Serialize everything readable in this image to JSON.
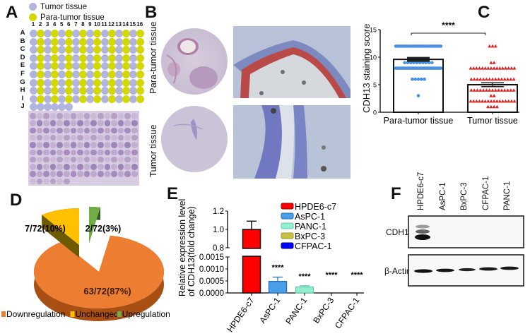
{
  "panels": {
    "A": {
      "letter": "A",
      "legend": [
        {
          "label": "Tumor tissue",
          "color": "#B1B5DD"
        },
        {
          "label": "Para-tumor tissue",
          "color": "#D3D800"
        }
      ],
      "columns": [
        "1",
        "2",
        "3",
        "4",
        "5",
        "6",
        "7",
        "8",
        "9",
        "10",
        "11",
        "12",
        "13",
        "14",
        "15",
        "16"
      ],
      "rows": [
        "A",
        "B",
        "C",
        "D",
        "E",
        "F",
        "G",
        "H",
        "I",
        "J"
      ],
      "layout_note": "Rows A–I: odd columns tumor (blue), even columns para-tumor (yellow); Row J: columns 1–6 tumor",
      "row_J_count": 6
    },
    "B": {
      "letter": "B",
      "row_labels": [
        "Para-tumor tissue",
        "Tumor tissue"
      ]
    },
    "C": {
      "letter": "C",
      "significance": "****"
    },
    "D": {
      "letter": "D"
    },
    "E": {
      "letter": "E"
    },
    "F": {
      "letter": "F",
      "lanes": [
        "HPDE6-c7",
        "AsPC-1",
        "BxPC-3",
        "CFPAC-1",
        "PANC-1"
      ],
      "bands": [
        "CDH13",
        "β-Actin"
      ]
    }
  },
  "chart_data": [
    {
      "panel": "C",
      "type": "bar",
      "title": "",
      "ylabel": "CDH13 staining score",
      "xlabel": "",
      "categories": [
        "Para-tumor tissue",
        "Tumor tissue"
      ],
      "values": [
        9.6,
        5.0
      ],
      "sem": [
        0.25,
        0.35
      ],
      "ylim": [
        0,
        15
      ],
      "yticks": [
        0,
        5,
        10,
        15
      ],
      "significance": "****",
      "scatter": {
        "Para-tumor tissue": {
          "marker": "circle",
          "color": "#4A90E2",
          "points": {
            "12": 30,
            "9": 10,
            "8": 30,
            "6": 5,
            "3": 1
          }
        },
        "Tumor tissue": {
          "marker": "triangle",
          "color": "#E0201E",
          "points": {
            "12": 3,
            "9": 2,
            "8": 16,
            "6": 15,
            "4": 15,
            "3": 2,
            "2": 16,
            "1": 4
          }
        }
      },
      "grid": false
    },
    {
      "panel": "D",
      "type": "pie",
      "title": "",
      "slices": [
        {
          "label": "Downregulation",
          "value": 63,
          "annotation": "63/72(87%)",
          "color": "#ED7D31"
        },
        {
          "label": "Unchanged",
          "value": 7,
          "annotation": "7/72(10%)",
          "color": "#FFC000"
        },
        {
          "label": "Upregulation",
          "value": 2,
          "annotation": "2/72(3%)",
          "color": "#70AD47"
        }
      ],
      "legend_position": "bottom"
    },
    {
      "panel": "E",
      "type": "bar",
      "title": "",
      "ylabel": "Relative expression level of CDH13(fold change)",
      "categories": [
        "HPDE6-c7",
        "AsPC-1",
        "PANC-1",
        "BxPC-3",
        "CFPAC-1"
      ],
      "values": [
        1.0,
        0.00048,
        0.00025,
        0.0,
        0.0
      ],
      "error": [
        0.09,
        0.00018,
        5e-05,
        0.0,
        0.0
      ],
      "colors": [
        "#FF0000",
        "#4A9FE8",
        "#8FEFD0",
        "#C8C040",
        "#0000FF"
      ],
      "significance": [
        "",
        "****",
        "****",
        "****",
        "****"
      ],
      "axis_break": true,
      "yticks_upper": [
        "0.8",
        "1.0",
        "1.2"
      ],
      "yticks_lower": [
        "0.0000",
        "0.0005",
        "0.0010",
        "0.0015"
      ],
      "legend": [
        "HPDE6-c7",
        "AsPC-1",
        "PANC-1",
        "BxPC-3",
        "CFPAC-1"
      ],
      "legend_position": "right"
    }
  ]
}
